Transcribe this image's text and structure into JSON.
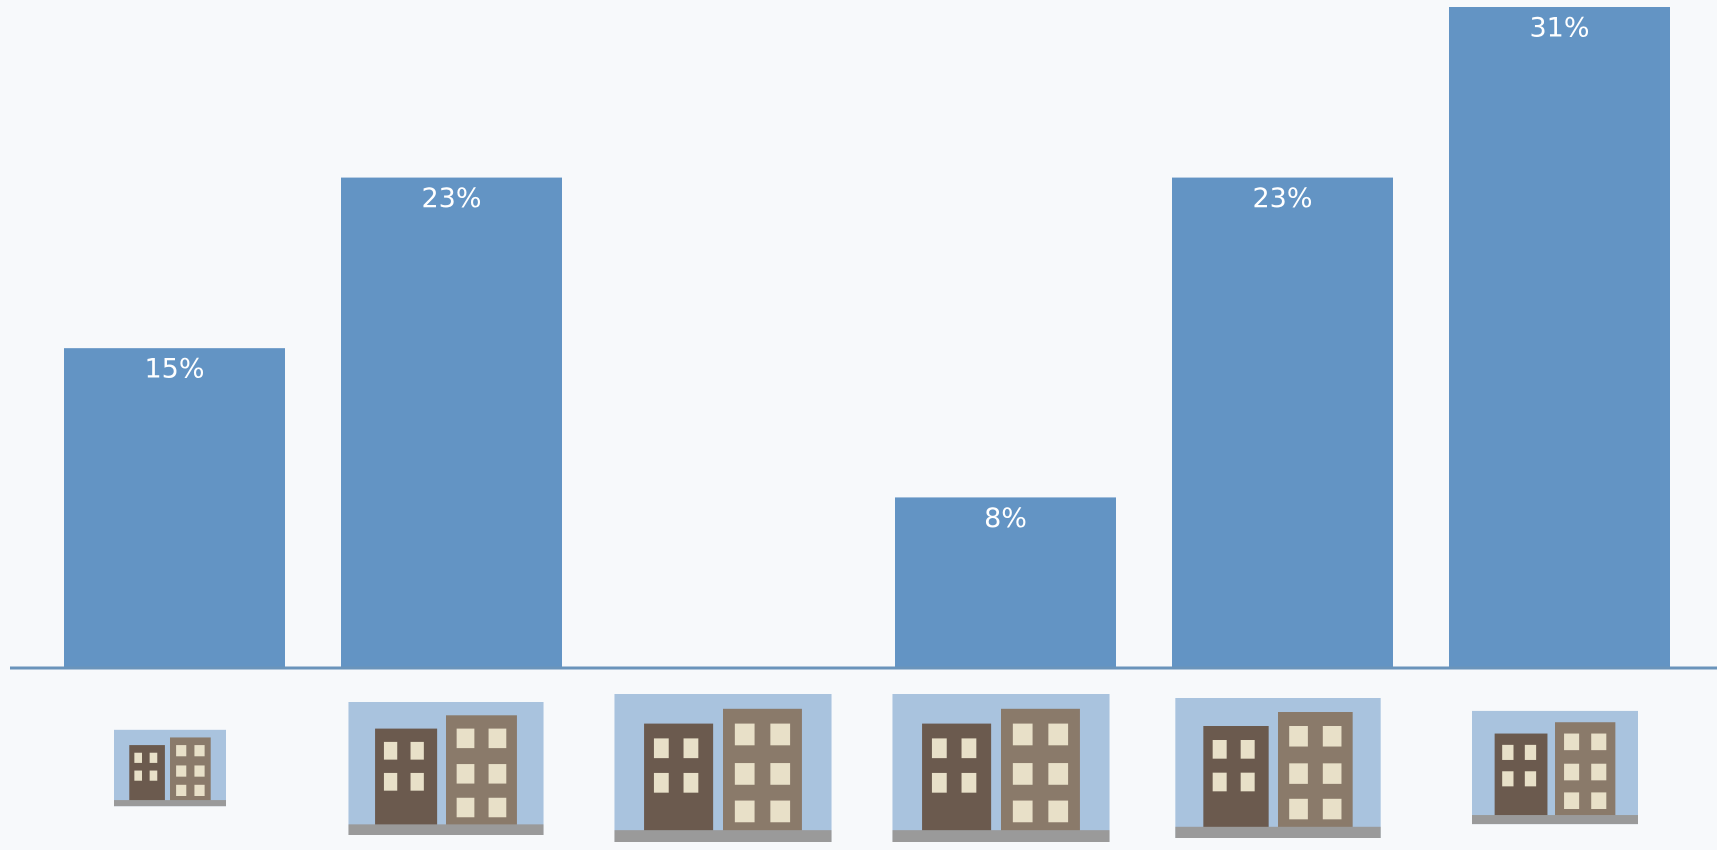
{
  "chart_data": {
    "type": "bar",
    "categories": [
      null,
      null,
      null,
      null,
      null,
      null
    ],
    "values": [
      15,
      23,
      0,
      8,
      23,
      31
    ],
    "value_labels": [
      "15%",
      "23%",
      null,
      "8%",
      "23%",
      "31%"
    ],
    "color": "#6394c4"
  }
}
